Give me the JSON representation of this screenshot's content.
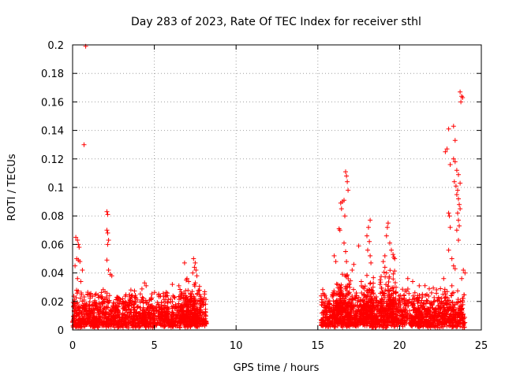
{
  "chart_data": {
    "type": "scatter",
    "title": "Day 283 of 2023, Rate Of TEC Index for receiver sthl",
    "xlabel": "GPS time / hours",
    "ylabel": "ROTI / TECUs",
    "xlim": [
      0,
      25
    ],
    "ylim": [
      0,
      0.2
    ],
    "x_ticks": [
      0,
      5,
      10,
      15,
      20,
      25
    ],
    "x_tick_labels": [
      "0",
      "5",
      "10",
      "15",
      "20",
      "25"
    ],
    "y_ticks": [
      0,
      0.02,
      0.04,
      0.06,
      0.08,
      0.1,
      0.12,
      0.14,
      0.16,
      0.18,
      0.2
    ],
    "y_tick_labels": [
      "0",
      "0.02",
      "0.04",
      "0.06",
      "0.08",
      "0.1",
      "0.12",
      "0.14",
      "0.16",
      "0.18",
      "0.2"
    ],
    "grid": true,
    "marker": "plus",
    "marker_color": "#ff0000",
    "series": [
      {
        "name": "ROTI",
        "points": [
          [
            0.8,
            0.199
          ],
          [
            0.7,
            0.13
          ],
          [
            0.2,
            0.065
          ],
          [
            0.3,
            0.063
          ],
          [
            0.35,
            0.06
          ],
          [
            0.4,
            0.058
          ],
          [
            0.25,
            0.05
          ],
          [
            0.35,
            0.049
          ],
          [
            0.45,
            0.048
          ],
          [
            0.6,
            0.042
          ],
          [
            0.15,
            0.045
          ],
          [
            0.3,
            0.036
          ],
          [
            0.5,
            0.034
          ],
          [
            2.1,
            0.083
          ],
          [
            2.15,
            0.081
          ],
          [
            2.1,
            0.07
          ],
          [
            2.15,
            0.068
          ],
          [
            2.2,
            0.063
          ],
          [
            2.15,
            0.06
          ],
          [
            2.1,
            0.049
          ],
          [
            2.2,
            0.042
          ],
          [
            2.3,
            0.039
          ],
          [
            2.4,
            0.038
          ],
          [
            4.4,
            0.033
          ],
          [
            4.5,
            0.031
          ],
          [
            6.1,
            0.032
          ],
          [
            6.5,
            0.031
          ],
          [
            6.85,
            0.047
          ],
          [
            6.95,
            0.035
          ],
          [
            7.0,
            0.036
          ],
          [
            7.1,
            0.034
          ],
          [
            7.4,
            0.05
          ],
          [
            7.5,
            0.047
          ],
          [
            7.45,
            0.044
          ],
          [
            7.55,
            0.042
          ],
          [
            7.35,
            0.04
          ],
          [
            7.6,
            0.038
          ],
          [
            16.0,
            0.052
          ],
          [
            16.1,
            0.048
          ],
          [
            16.3,
            0.071
          ],
          [
            16.35,
            0.07
          ],
          [
            16.4,
            0.089
          ],
          [
            16.5,
            0.09
          ],
          [
            16.45,
            0.085
          ],
          [
            16.6,
            0.091
          ],
          [
            16.65,
            0.08
          ],
          [
            16.7,
            0.111
          ],
          [
            16.75,
            0.108
          ],
          [
            16.8,
            0.104
          ],
          [
            16.85,
            0.098
          ],
          [
            16.6,
            0.061
          ],
          [
            16.7,
            0.055
          ],
          [
            16.75,
            0.048
          ],
          [
            17.2,
            0.046
          ],
          [
            17.1,
            0.042
          ],
          [
            17.5,
            0.059
          ],
          [
            18.0,
            0.066
          ],
          [
            18.1,
            0.072
          ],
          [
            18.2,
            0.077
          ],
          [
            18.15,
            0.062
          ],
          [
            18.05,
            0.056
          ],
          [
            18.2,
            0.052
          ],
          [
            18.25,
            0.047
          ],
          [
            19.0,
            0.048
          ],
          [
            19.1,
            0.052
          ],
          [
            19.2,
            0.066
          ],
          [
            19.3,
            0.075
          ],
          [
            19.25,
            0.072
          ],
          [
            19.4,
            0.061
          ],
          [
            19.5,
            0.056
          ],
          [
            19.6,
            0.053
          ],
          [
            19.65,
            0.051
          ],
          [
            19.7,
            0.05
          ],
          [
            19.1,
            0.044
          ],
          [
            19.2,
            0.04
          ],
          [
            20.5,
            0.036
          ],
          [
            20.8,
            0.034
          ],
          [
            21.2,
            0.031
          ],
          [
            22.5,
            0.029
          ],
          [
            22.7,
            0.036
          ],
          [
            22.8,
            0.125
          ],
          [
            22.9,
            0.127
          ],
          [
            23.0,
            0.141
          ],
          [
            23.1,
            0.116
          ],
          [
            23.3,
            0.143
          ],
          [
            23.4,
            0.133
          ],
          [
            23.3,
            0.12
          ],
          [
            23.4,
            0.118
          ],
          [
            23.5,
            0.112
          ],
          [
            23.35,
            0.104
          ],
          [
            23.45,
            0.101
          ],
          [
            23.55,
            0.098
          ],
          [
            23.6,
            0.109
          ],
          [
            23.7,
            0.103
          ],
          [
            23.5,
            0.095
          ],
          [
            23.6,
            0.092
          ],
          [
            23.65,
            0.088
          ],
          [
            23.7,
            0.085
          ],
          [
            23.55,
            0.082
          ],
          [
            23.6,
            0.077
          ],
          [
            23.65,
            0.073
          ],
          [
            23.5,
            0.07
          ],
          [
            23.7,
            0.167
          ],
          [
            23.8,
            0.164
          ],
          [
            23.75,
            0.16
          ],
          [
            23.85,
            0.163
          ],
          [
            23.0,
            0.082
          ],
          [
            23.05,
            0.08
          ],
          [
            23.1,
            0.072
          ],
          [
            23.0,
            0.056
          ],
          [
            23.2,
            0.05
          ],
          [
            23.6,
            0.063
          ],
          [
            23.3,
            0.045
          ],
          [
            23.4,
            0.043
          ],
          [
            23.9,
            0.042
          ],
          [
            24.0,
            0.04
          ],
          [
            23.8,
            0.036
          ],
          [
            23.2,
            0.031
          ]
        ],
        "bands": [
          {
            "x": [
              0.0,
              8.2
            ],
            "y_base": [
              0.003,
              0.01
            ],
            "y_top": [
              0.015,
              0.03
            ],
            "density": 1400
          },
          {
            "x": [
              15.2,
              24.0
            ],
            "y_base": [
              0.003,
              0.01
            ],
            "y_top": [
              0.015,
              0.032
            ],
            "density": 1500
          },
          {
            "x": [
              16.1,
              17.0
            ],
            "y_base": [
              0.01,
              0.02
            ],
            "y_top": [
              0.025,
              0.045
            ],
            "density": 120
          },
          {
            "x": [
              17.6,
              18.4
            ],
            "y_base": [
              0.01,
              0.02
            ],
            "y_top": [
              0.025,
              0.04
            ],
            "density": 100
          },
          {
            "x": [
              18.8,
              19.8
            ],
            "y_base": [
              0.01,
              0.02
            ],
            "y_top": [
              0.025,
              0.045
            ],
            "density": 110
          },
          {
            "x": [
              6.6,
              7.8
            ],
            "y_base": [
              0.008,
              0.015
            ],
            "y_top": [
              0.02,
              0.035
            ],
            "density": 140
          }
        ]
      }
    ]
  }
}
